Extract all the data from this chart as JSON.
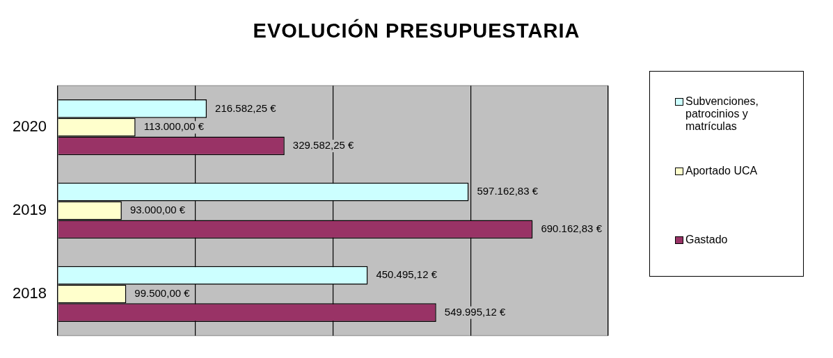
{
  "chart_data": {
    "type": "bar",
    "orientation": "horizontal",
    "title": "EVOLUCIÓN PRESUPUESTARIA",
    "categories": [
      "2020",
      "2019",
      "2018"
    ],
    "series": [
      {
        "name": "Subvenciones, patrocinios y matrículas",
        "color": "#ccffff",
        "values": [
          216582.25,
          597162.83,
          450495.12
        ],
        "value_labels": [
          "216.582,25 €",
          "597.162,83 €",
          "450.495,12 €"
        ]
      },
      {
        "name": "Aportado UCA",
        "color": "#ffffcc",
        "values": [
          113000,
          93000,
          99500
        ],
        "value_labels": [
          "113.000,00 €",
          "93.000,00 €",
          "99.500,00 €"
        ]
      },
      {
        "name": "Gastado",
        "color": "#993366",
        "values": [
          329582.25,
          690162.83,
          549995.12
        ],
        "value_labels": [
          "329.582,25 €",
          "690.162,83 €",
          "549.995,12 €"
        ]
      }
    ],
    "xlim": [
      0,
      800000
    ],
    "xticks": [
      {
        "value": 0,
        "label": null
      },
      {
        "value": 200000,
        "label": null
      },
      {
        "value": 400000,
        "label": null
      },
      {
        "value": 600000,
        "label": null
      },
      {
        "value": 800000,
        "label": null
      }
    ],
    "tick_labels": "y",
    "grid": "x",
    "legend": "right"
  }
}
